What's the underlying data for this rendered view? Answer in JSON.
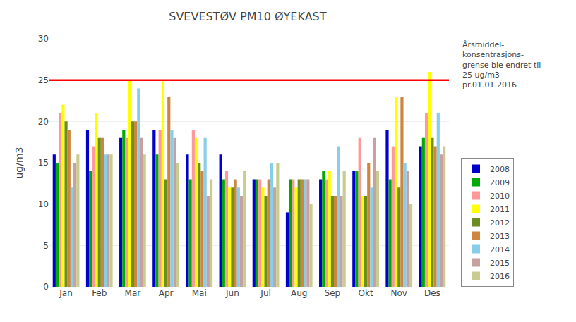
{
  "chart_data": {
    "type": "bar",
    "title": "SVEVESTØV PM10 ØYEKAST",
    "ylabel": "ug/m3",
    "categories": [
      "Jan",
      "Feb",
      "Mar",
      "Apr",
      "Mai",
      "Jun",
      "Jul",
      "Aug",
      "Sep",
      "Okt",
      "Nov",
      "Des"
    ],
    "series": [
      {
        "name": "2008",
        "color": "#0000CD",
        "values": [
          16,
          19,
          18,
          19,
          16,
          16,
          13,
          9,
          13,
          14,
          19,
          17
        ]
      },
      {
        "name": "2009",
        "color": "#00AA00",
        "values": [
          15,
          14,
          19,
          16,
          13,
          13,
          13,
          13,
          14,
          14,
          13,
          18
        ]
      },
      {
        "name": "2010",
        "color": "#FF9999",
        "values": [
          21,
          17,
          18,
          19,
          19,
          14,
          13,
          13,
          13,
          18,
          17,
          21
        ]
      },
      {
        "name": "2011",
        "color": "#FFFF00",
        "values": [
          22,
          21,
          25,
          25,
          18,
          12,
          12,
          12,
          14,
          11,
          23,
          26
        ]
      },
      {
        "name": "2012",
        "color": "#6B8E23",
        "values": [
          20,
          18,
          20,
          13,
          15,
          12,
          11,
          13,
          11,
          11,
          12,
          18
        ]
      },
      {
        "name": "2013",
        "color": "#CD853F",
        "values": [
          19,
          18,
          20,
          23,
          14,
          13,
          13,
          13,
          11,
          15,
          23,
          17
        ]
      },
      {
        "name": "2014",
        "color": "#87CEEB",
        "values": [
          12,
          16,
          24,
          19,
          18,
          12,
          15,
          13,
          17,
          12,
          15,
          21
        ]
      },
      {
        "name": "2015",
        "color": "#C8A0A0",
        "values": [
          15,
          16,
          18,
          18,
          11,
          11,
          12,
          13,
          11,
          18,
          14,
          16
        ]
      },
      {
        "name": "2016",
        "color": "#C8CC90",
        "values": [
          16,
          16,
          16,
          15,
          13,
          14,
          15,
          10,
          14,
          14,
          10,
          17
        ]
      }
    ],
    "ylim": [
      0,
      30
    ],
    "yticks": [
      0,
      5,
      10,
      15,
      20,
      25,
      30
    ],
    "grid": true,
    "legend": "right",
    "hline": {
      "y": 25,
      "color": "#FF0000"
    },
    "annotations": [
      {
        "text": "Årsmiddel-\nkonsentrasjons-\ngrense ble endret til\n25 ug/m3\npr.01.01.2016"
      }
    ]
  }
}
